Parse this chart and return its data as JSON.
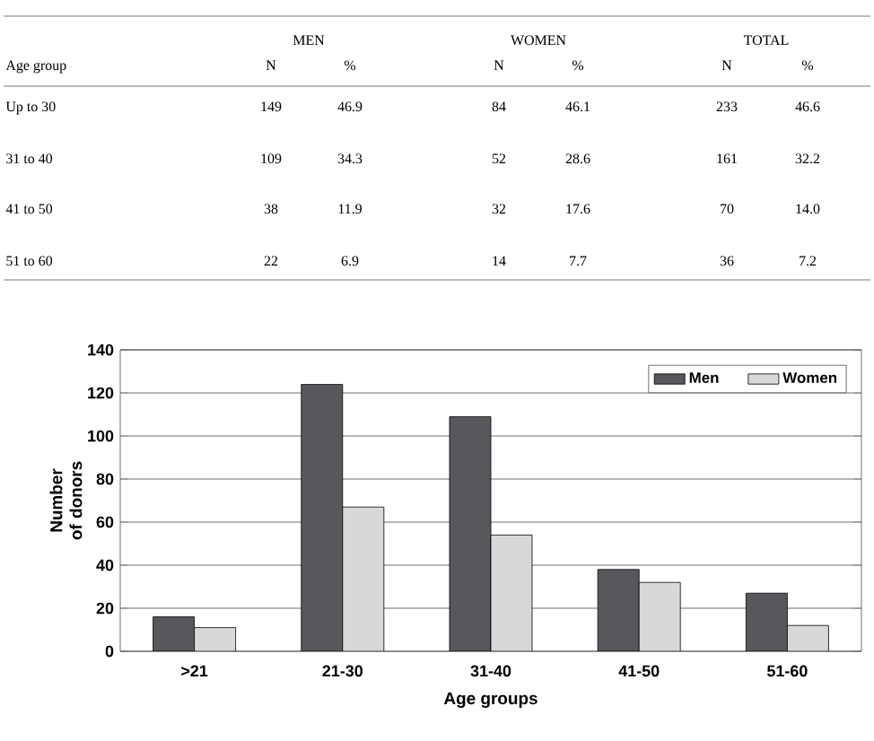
{
  "chart_data": [
    {
      "type": "other",
      "annotations": [
        "MEN",
        "WOMEN",
        "TOTAL",
        "Age group",
        "N",
        "%",
        "N",
        "%",
        "N",
        "%",
        "Up to 30",
        "149",
        "46.9",
        "84",
        "46.1",
        "233",
        "46.6",
        "31 to 40",
        "109",
        "34.3",
        "52",
        "28.6",
        "161",
        "32.2",
        "41 to 50",
        "38",
        "11.9",
        "32",
        "17.6",
        "70",
        "14.0",
        "51 to 60",
        "22",
        "6.9",
        "14",
        "7.7",
        "36",
        "7.2"
      ]
    },
    {
      "type": "bar",
      "xlabel": "Age groups",
      "ylabel": "Number of donors",
      "categories": [
        ">21",
        "21-30",
        "31-40",
        "41-50",
        "51-60"
      ],
      "series": [
        {
          "name": "Men",
          "color": "#58585c",
          "values": [
            16,
            124,
            109,
            38,
            27
          ]
        },
        {
          "name": "Women",
          "color": "#d8d8d8",
          "values": [
            11,
            67,
            54,
            32,
            12
          ]
        }
      ],
      "ylim": [
        0,
        140
      ],
      "yticks": [
        0,
        20,
        40,
        60,
        80,
        100,
        120,
        140
      ],
      "grid": "y",
      "legend": "top right"
    }
  ]
}
